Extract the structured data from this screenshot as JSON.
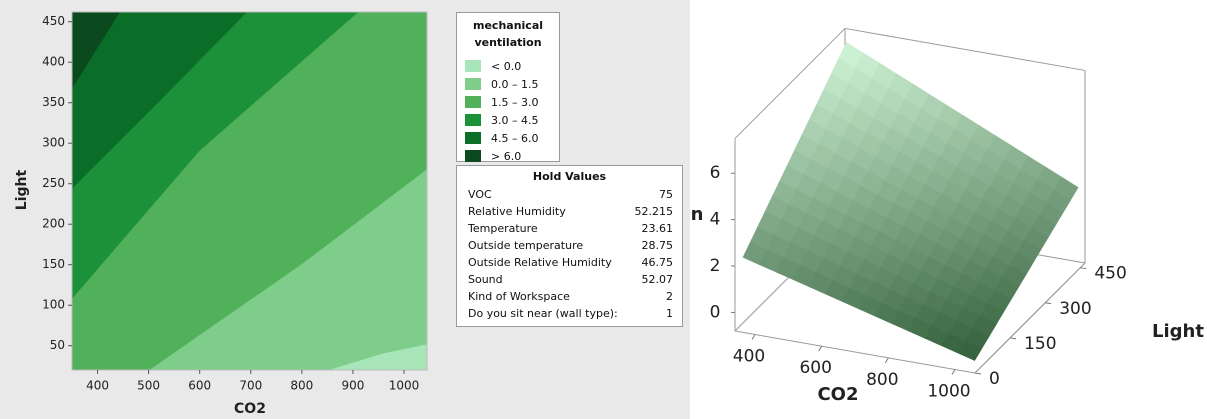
{
  "chart_data": [
    {
      "type": "contour",
      "xlabel": "CO2",
      "ylabel": "Light",
      "xlim": [
        350,
        1045
      ],
      "ylim": [
        20,
        462
      ],
      "xticks": [
        400,
        500,
        600,
        700,
        800,
        900,
        1000
      ],
      "yticks": [
        50,
        100,
        150,
        200,
        250,
        300,
        350,
        400,
        450
      ],
      "contours": [
        {
          "x": [
            857,
            960,
            1045
          ],
          "y": [
            20,
            40,
            51
          ]
        },
        {
          "x": [
            503,
            800,
            1045
          ],
          "y": [
            20,
            150,
            267
          ]
        },
        {
          "x": [
            350,
            600,
            912
          ],
          "y": [
            107,
            290,
            462
          ]
        },
        {
          "x": [
            350,
            520,
            694
          ],
          "y": [
            243,
            350,
            462
          ]
        },
        {
          "x": [
            350,
            445
          ],
          "y": [
            366,
            462
          ]
        }
      ],
      "legend": {
        "title": "mechanical ventilation",
        "entries": [
          {
            "label": "< 0.0",
            "color": "#a8e6ba"
          },
          {
            "label": "0.0 – 1.5",
            "color": "#7fcd8b"
          },
          {
            "label": "1.5 – 3.0",
            "color": "#51b05a"
          },
          {
            "label": "3.0 – 4.5",
            "color": "#1c913a"
          },
          {
            "label": "4.5 – 6.0",
            "color": "#0a6e28"
          },
          {
            "label": "> 6.0",
            "color": "#0a4a1e"
          }
        ]
      }
    },
    {
      "type": "surface",
      "xlabel": "CO2",
      "ylabel": "Light",
      "zlabel": "n",
      "x": [
        350,
        1045
      ],
      "y": [
        20,
        462
      ],
      "z": [
        [
          2.2,
          7
        ],
        [
          -0.5,
          2.5
        ]
      ],
      "xlim": [
        340,
        1060
      ],
      "ylim": [
        0,
        470
      ],
      "zlim": [
        -0.8,
        7.5
      ],
      "xticks": [
        400,
        600,
        800,
        1000
      ],
      "yticks": [
        0,
        150,
        300,
        450
      ],
      "zticks": [
        0,
        2,
        4,
        6
      ]
    }
  ],
  "hold_values": {
    "title": "Hold Values",
    "rows": [
      [
        "VOC",
        75
      ],
      [
        "Relative Humidity",
        52.215
      ],
      [
        "Temperature",
        23.61
      ],
      [
        "Outside temperature",
        28.75
      ],
      [
        "Outside Relative Humidity",
        46.75
      ],
      [
        "Sound",
        52.07
      ],
      [
        "Kind of Workspace",
        2
      ],
      [
        "Do you sit near  (wall type):",
        1
      ]
    ]
  }
}
